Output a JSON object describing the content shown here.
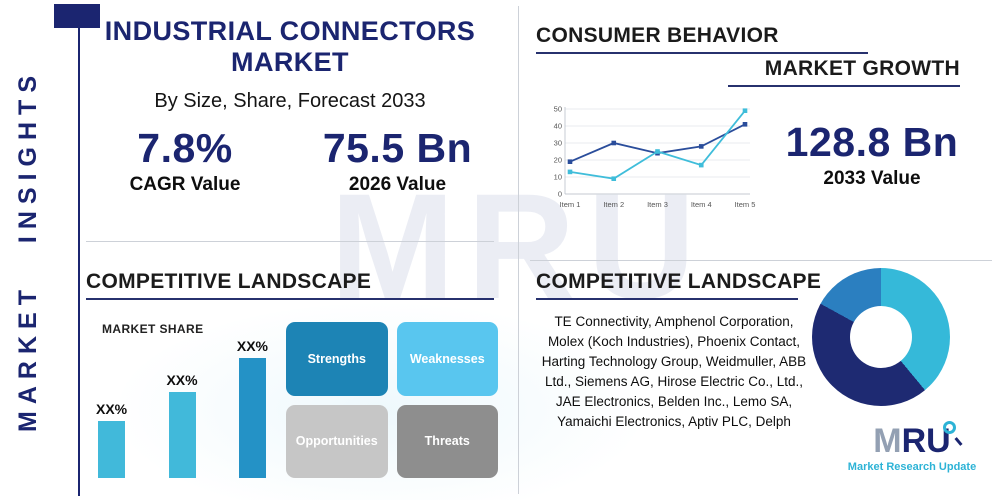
{
  "sidebar": {
    "label": "MARKET INSIGHTS"
  },
  "header": {
    "title": "INDUSTRIAL CONNECTORS MARKET",
    "subtitle": "By Size, Share, Forecast 2033"
  },
  "stats": {
    "cagr_value": "7.8%",
    "cagr_label": "CAGR Value",
    "value_2026": "75.5 Bn",
    "label_2026": "2026 Value",
    "value_2033": "128.8 Bn",
    "label_2033": "2033 Value"
  },
  "sections": {
    "consumer_behavior": "CONSUMER BEHAVIOR",
    "market_growth": "MARKET GROWTH",
    "competitive_landscape_left": "COMPETITIVE LANDSCAPE",
    "competitive_landscape_right": "COMPETITIVE LANDSCAPE"
  },
  "chart_data": [
    {
      "type": "line",
      "title": "Consumer behavior / market growth trend",
      "x": [
        "Item 1",
        "Item 2",
        "Item 3",
        "Item 4",
        "Item 5"
      ],
      "series": [
        {
          "name": "dark-blue-series",
          "color": "#2a4d9b",
          "values": [
            19,
            30,
            24,
            28,
            41
          ]
        },
        {
          "name": "light-blue-series",
          "color": "#3fbdda",
          "values": [
            13,
            9,
            25,
            17,
            49
          ]
        }
      ],
      "ylim": [
        0,
        50
      ],
      "yticks": [
        0,
        10,
        20,
        30,
        40,
        50
      ],
      "grid": true,
      "legend_position": "none"
    },
    {
      "type": "bar",
      "title": "MARKET SHARE",
      "categories": [
        "XX%",
        "XX%",
        "XX%"
      ],
      "values": [
        20,
        30,
        42
      ],
      "colors": [
        "#41b9da",
        "#41b9da",
        "#2492c6"
      ],
      "xlabel": "",
      "ylabel": ""
    },
    {
      "type": "pie",
      "title": "Competitive landscape share (donut)",
      "donut": true,
      "slices": [
        {
          "name": "teal-slice",
          "value": 39,
          "color": "#35b9d9"
        },
        {
          "name": "navy-slice",
          "value": 44,
          "color": "#1e2a72"
        },
        {
          "name": "blue-slice",
          "value": 17,
          "color": "#2b7fc0"
        }
      ]
    }
  ],
  "swot": [
    {
      "label": "Strengths",
      "color": "#1d84b5"
    },
    {
      "label": "Weaknesses",
      "color": "#59c6ef"
    },
    {
      "label": "Opportunities",
      "color": "#c6c6c6"
    },
    {
      "label": "Threats",
      "color": "#8e8e8e"
    }
  ],
  "companies": "TE Connectivity, Amphenol Corporation, Molex (Koch Industries), Phoenix Contact, Harting Technology Group, Weidmuller, ABB Ltd., Siemens AG, Hirose Electric Co., Ltd., JAE Electronics, Belden Inc., Lemo SA, Yamaichi Electronics, Aptiv PLC, Delph",
  "logo": {
    "m": "M",
    "r": "R",
    "u": "U",
    "tagline": "Market Research Update"
  },
  "watermark": "MRU",
  "colors": {
    "navy": "#1b2570",
    "teal": "#2db3d6"
  }
}
